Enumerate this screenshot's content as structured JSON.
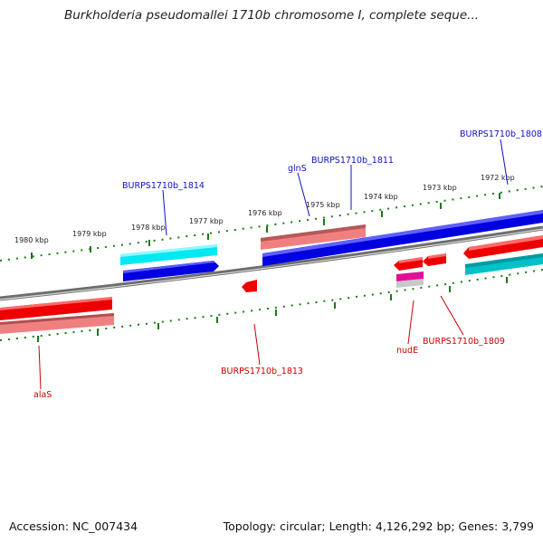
{
  "title": "Burkholderia pseudomallei 1710b chromosome I, complete seque...",
  "footer": {
    "accession": "Accession: NC_007434",
    "summary": "Topology: circular; Length: 4,126,292 bp; Genes: 3,799"
  },
  "scale_labels": [
    "1980 kbp",
    "1979 kbp",
    "1978 kbp",
    "1977 kbp",
    "1976 kbp",
    "1975 kbp",
    "1974 kbp",
    "1973 kbp",
    "1972 kbp"
  ],
  "gene_labels": {
    "alaS": "alaS",
    "burps1814": "BURPS1710b_1814",
    "burps1813": "BURPS1710b_1813",
    "glnS": "glnS",
    "burps1811": "BURPS1710b_1811",
    "nudE": "nudE",
    "burps1809": "BURPS1710b_1809",
    "burps1808": "BURPS1710b_1808"
  },
  "colors": {
    "forward_cds": "#0000e0",
    "reverse_cds": "#ee0000",
    "forward_light": "#00e8f0",
    "reverse_light": "#f08080",
    "backbone": "#808080",
    "tick": "#1a7a1a",
    "label_blue": "#1010c8",
    "label_red": "#cc0000"
  }
}
